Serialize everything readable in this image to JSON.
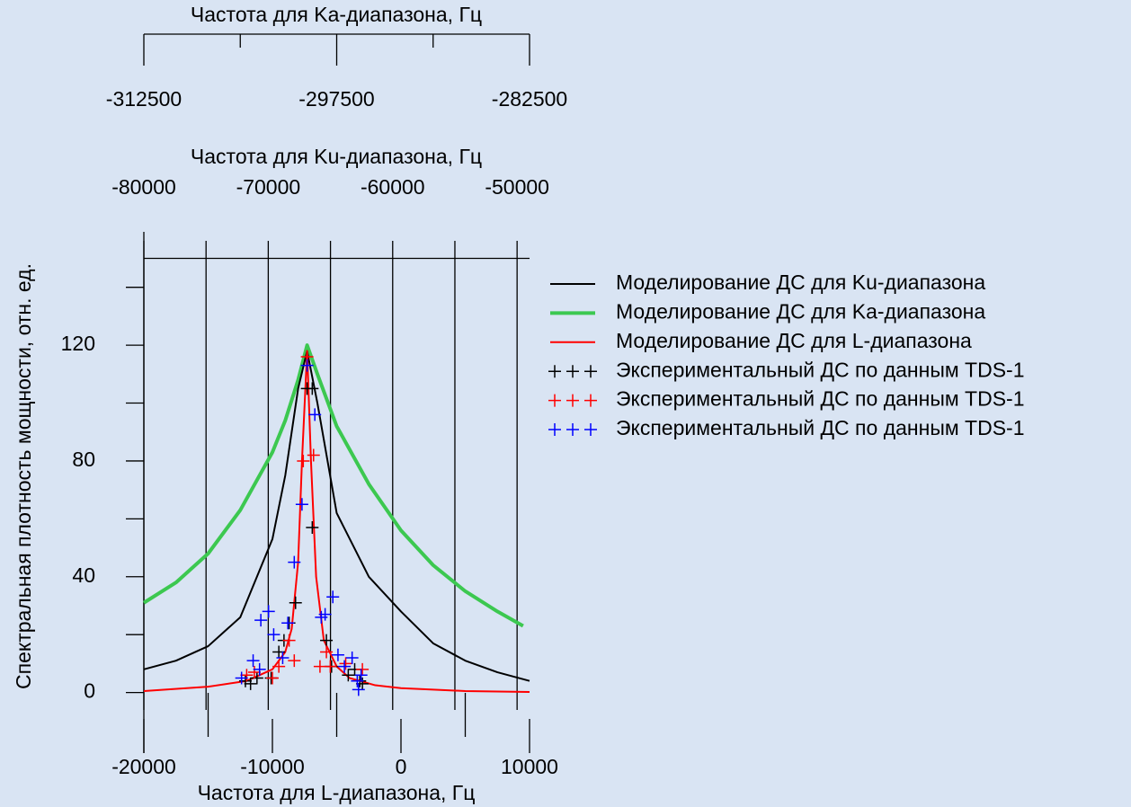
{
  "chart_data": {
    "type": "line",
    "xlabel": "Частота для L-диапазона, Гц",
    "ylabel": "Спектральная плотность мощности, отн. ед.",
    "xlim": [
      -20000,
      10000
    ],
    "xticks": [
      -20000,
      -10000,
      0,
      10000
    ],
    "xminorticks": [
      -15000,
      -5000,
      5000
    ],
    "ylim": [
      -20,
      150
    ],
    "yticks": [
      0,
      40,
      80,
      120
    ],
    "yminorticks": [
      20,
      60,
      100,
      140
    ],
    "x2": {
      "label": "Частота для Ku-диапазона, Гц",
      "lim": [
        -80000,
        -49000
      ],
      "ticks": [
        -80000,
        -70000,
        -60000,
        -50000
      ],
      "minorticks": [
        -75000,
        -65000,
        -55000
      ],
      "grid": true
    },
    "x3": {
      "label": "Частота для Ka-диапазона, Гц",
      "lim": [
        -312500,
        -282500
      ],
      "ticks": [
        -312500,
        -297500,
        -282500
      ],
      "minorticks": [
        -305000,
        -290000
      ]
    },
    "series": [
      {
        "name": "Моделирование ДС для Ku-диапазона",
        "mode": "line",
        "color": "#000000",
        "line_width": 2,
        "x": [
          -20000,
          -17500,
          -15000,
          -12500,
          -10000,
          -9000,
          -8000,
          -7300,
          -6500,
          -5000,
          -2500,
          0,
          2500,
          5000,
          7500,
          10000
        ],
        "values": [
          8,
          11,
          16,
          26,
          53,
          75,
          105,
          118,
          100,
          62,
          40,
          28,
          17,
          11,
          7,
          4
        ]
      },
      {
        "name": "Моделирование ДС для Ka-диапазона",
        "mode": "line",
        "color": "#3cc850",
        "line_width": 4,
        "x": [
          -20000,
          -17500,
          -15000,
          -12500,
          -10000,
          -9000,
          -8000,
          -7300,
          -6500,
          -5000,
          -2500,
          0,
          2500,
          5000,
          7500,
          9500
        ],
        "values": [
          31,
          38,
          48,
          63,
          83,
          94,
          108,
          120,
          110,
          92,
          72,
          56,
          44,
          35,
          28,
          23
        ]
      },
      {
        "name": "Моделирование ДС для L-диапазона",
        "mode": "line",
        "color": "#ff0000",
        "line_width": 2,
        "x": [
          -20000,
          -15000,
          -12000,
          -10000,
          -9000,
          -8500,
          -8000,
          -7700,
          -7300,
          -7000,
          -6600,
          -6000,
          -5000,
          -4000,
          -2000,
          0,
          5000,
          10000
        ],
        "values": [
          0.5,
          2,
          4,
          8,
          14,
          22,
          45,
          80,
          118,
          80,
          40,
          18,
          9,
          5,
          2.5,
          1.5,
          0.5,
          0.2
        ]
      },
      {
        "name": "Экспериментальный ДС по данным TDS-1",
        "mode": "markers",
        "color": "#000000",
        "x": [
          -7300,
          -6900,
          -6900,
          -8200,
          -8700,
          -9100,
          -9500,
          -10100,
          -11200,
          -11700,
          -12100,
          -5800,
          -5400,
          -4100,
          -3200,
          -3000,
          -3600
        ],
        "values": [
          105,
          105,
          57,
          31,
          24,
          18,
          14,
          5,
          5,
          3,
          4,
          18,
          9,
          6,
          4,
          3,
          8
        ]
      },
      {
        "name": "Экспериментальный ДС по данным TDS-1",
        "mode": "markers",
        "color": "#ff0000",
        "x": [
          -7600,
          -6800,
          -7300,
          -8700,
          -8300,
          -9500,
          -10000,
          -11400,
          -12000,
          -6300,
          -5500,
          -5800,
          -4300,
          -3000
        ],
        "values": [
          80,
          82,
          116,
          18,
          11,
          9,
          5,
          7,
          6,
          9,
          9,
          14,
          10,
          8
        ]
      },
      {
        "name": "Экспериментальный ДС по данным TDS-1",
        "mode": "markers",
        "color": "#0000ff",
        "x": [
          -7300,
          -6700,
          -7700,
          -8300,
          -8800,
          -10300,
          -10900,
          -9900,
          -9200,
          -11500,
          -11000,
          -12400,
          -6200,
          -5900,
          -5300,
          -4900,
          -3800,
          -3400,
          -3300,
          -3100,
          -4400
        ],
        "values": [
          113,
          96,
          65,
          45,
          24,
          28,
          25,
          20,
          12,
          11,
          8,
          5,
          26,
          27,
          33,
          13,
          12,
          4,
          1,
          6,
          9
        ]
      }
    ]
  }
}
